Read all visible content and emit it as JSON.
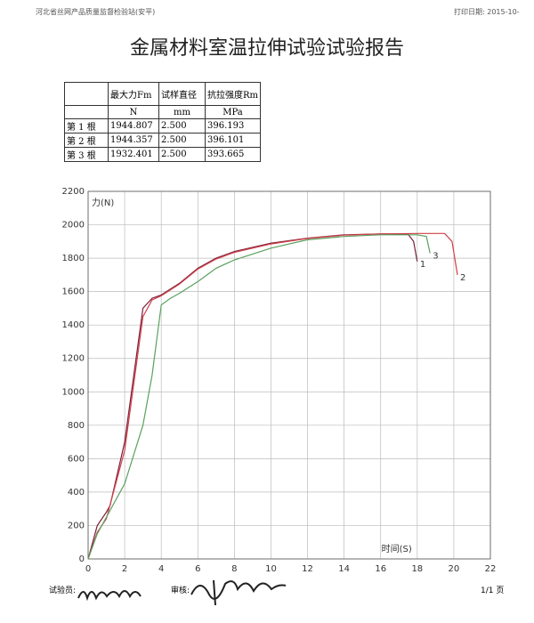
{
  "header": {
    "org": "河北省丝网产品质量监督检验站(安平)",
    "print_date": "打印日期: 2015-10-"
  },
  "title": "金属材料室温拉伸试验试验报告",
  "table": {
    "columns": [
      "最大力Fm",
      "试样直径",
      "抗拉强度Rm"
    ],
    "units": [
      "N",
      "mm",
      "MPa"
    ],
    "rows": [
      [
        "第 1 根",
        "1944.807",
        "2.500",
        "396.193"
      ],
      [
        "第 2 根",
        "1944.357",
        "2.500",
        "396.101"
      ],
      [
        "第 3 根",
        "1932.401",
        "2.500",
        "393.665"
      ]
    ]
  },
  "chart_data": {
    "type": "line",
    "y_label": "力(N)",
    "x_label": "时间(S)",
    "xlim": [
      0,
      22
    ],
    "xticks": [
      0,
      2,
      4,
      6,
      8,
      10,
      12,
      14,
      16,
      18,
      20,
      22
    ],
    "ylim": [
      0,
      2200
    ],
    "yticks": [
      0,
      200,
      400,
      600,
      800,
      1000,
      1200,
      1400,
      1600,
      1800,
      2000,
      2200
    ],
    "grid": true,
    "series": [
      {
        "name": "1",
        "color": "#7a1f3a",
        "x": [
          0,
          0.5,
          1,
          1.2,
          2,
          3,
          3.5,
          4,
          5,
          6,
          7,
          8,
          10,
          12,
          14,
          16,
          17.5,
          17.8,
          18
        ],
        "values": [
          0,
          200,
          280,
          320,
          700,
          1500,
          1560,
          1580,
          1650,
          1740,
          1800,
          1840,
          1890,
          1920,
          1940,
          1945,
          1944,
          1900,
          1780
        ]
      },
      {
        "name": "2",
        "color": "#d0404a",
        "x": [
          0,
          0.5,
          1,
          2,
          3,
          3.5,
          4,
          5,
          6,
          7,
          8,
          10,
          12,
          14,
          16,
          18,
          19.5,
          19.9,
          20.2
        ],
        "values": [
          0,
          160,
          240,
          650,
          1450,
          1550,
          1575,
          1645,
          1735,
          1795,
          1835,
          1885,
          1918,
          1938,
          1945,
          1948,
          1948,
          1900,
          1700
        ]
      },
      {
        "name": "3",
        "color": "#5aa060",
        "x": [
          0,
          0.5,
          1,
          2,
          3,
          3.5,
          4,
          4.5,
          5,
          6,
          7,
          8,
          10,
          12,
          14,
          16,
          18,
          18.5,
          18.7
        ],
        "values": [
          0,
          150,
          250,
          450,
          800,
          1100,
          1520,
          1560,
          1590,
          1660,
          1740,
          1790,
          1860,
          1910,
          1930,
          1940,
          1940,
          1930,
          1830
        ]
      }
    ]
  },
  "footer": {
    "tester": "试验员:",
    "reviewer": "审核:",
    "page": "1/1 页"
  }
}
